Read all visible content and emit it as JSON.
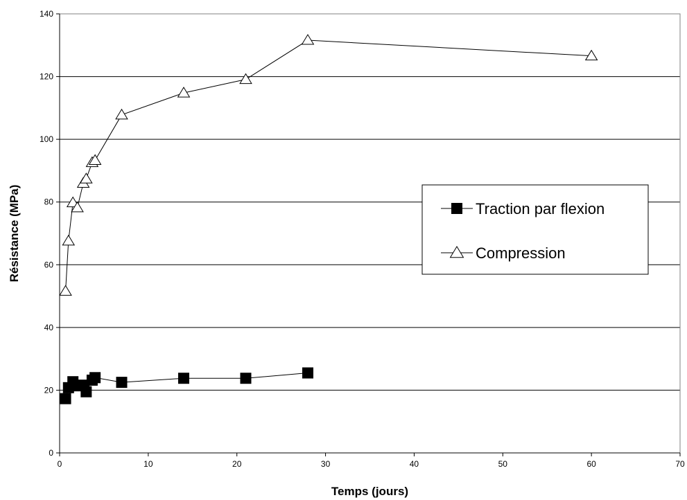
{
  "chart_data": {
    "type": "scatter",
    "title": "",
    "xlabel": "Temps (jours)",
    "ylabel": "Résistance (MPa)",
    "xlim": [
      0,
      70
    ],
    "ylim": [
      0,
      140
    ],
    "x_ticks": [
      0,
      10,
      20,
      30,
      40,
      50,
      60,
      70
    ],
    "y_ticks": [
      0,
      20,
      40,
      60,
      80,
      100,
      120,
      140
    ],
    "grid": "horizontal",
    "legend_position": "right",
    "series": [
      {
        "name": "Traction par flexion",
        "marker": "filled-square",
        "color": "#000000",
        "x": [
          0.67,
          1,
          1.5,
          2,
          2.67,
          3,
          3.67,
          4,
          7,
          14,
          21,
          28
        ],
        "y": [
          17.3,
          20.8,
          22.7,
          21.4,
          21.6,
          19.5,
          23.2,
          24.0,
          22.5,
          23.8,
          23.8,
          25.5
        ]
      },
      {
        "name": "Compression",
        "marker": "open-triangle",
        "color": "#000000",
        "x": [
          0.67,
          1,
          1.5,
          2,
          2.67,
          3,
          3.67,
          4,
          7,
          14,
          21,
          28,
          60
        ],
        "y": [
          51.6,
          67.6,
          79.8,
          78.2,
          86.0,
          87.4,
          92.6,
          93.3,
          107.8,
          114.8,
          119.1,
          131.6,
          126.6
        ]
      }
    ]
  }
}
